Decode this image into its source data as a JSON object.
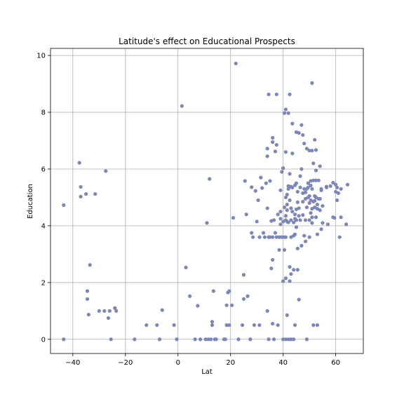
{
  "chart_data": {
    "type": "scatter",
    "title": "Latitude's effect on Educational Prospects",
    "xlabel": "Lat",
    "ylabel": "Education",
    "xlim": [
      -48.5,
      70.5
    ],
    "ylim": [
      -0.5,
      10.25
    ],
    "xticks": [
      -40,
      -20,
      0,
      20,
      40,
      60
    ],
    "yticks": [
      0,
      2,
      4,
      6,
      8,
      10
    ],
    "xtick_labels": [
      "−40",
      "−20",
      "0",
      "20",
      "40",
      "60"
    ],
    "ytick_labels": [
      "0",
      "2",
      "4",
      "6",
      "8",
      "10"
    ],
    "grid": true,
    "marker_color": "#7c87b8",
    "points": [
      [
        -43.5,
        4.73
      ],
      [
        -43.5,
        0
      ],
      [
        -37.5,
        6.22
      ],
      [
        -37,
        5.37
      ],
      [
        -37,
        5.03
      ],
      [
        -35,
        5.12
      ],
      [
        -34.5,
        1.7
      ],
      [
        -34.5,
        1.42
      ],
      [
        -34,
        0.87
      ],
      [
        -33.5,
        2.62
      ],
      [
        -31.5,
        5.12
      ],
      [
        -30,
        1
      ],
      [
        -28,
        1
      ],
      [
        -27.5,
        5.93
      ],
      [
        -26.5,
        0.75
      ],
      [
        -26,
        1
      ],
      [
        -25.5,
        0
      ],
      [
        -24,
        1.1
      ],
      [
        -23.5,
        1
      ],
      [
        -16.5,
        0
      ],
      [
        -12,
        0.5
      ],
      [
        -8,
        0.5
      ],
      [
        -7,
        0
      ],
      [
        -6,
        1.03
      ],
      [
        -1.5,
        0.5
      ],
      [
        -0.5,
        0
      ],
      [
        1.5,
        8.22
      ],
      [
        3,
        2.53
      ],
      [
        4.5,
        1.52
      ],
      [
        6.5,
        0
      ],
      [
        7.5,
        1.18
      ],
      [
        8.5,
        0
      ],
      [
        10.5,
        0
      ],
      [
        11,
        4.1
      ],
      [
        11.5,
        0
      ],
      [
        12,
        5.65
      ],
      [
        12.5,
        0
      ],
      [
        13,
        0.62
      ],
      [
        13,
        0.5
      ],
      [
        13.5,
        1.7
      ],
      [
        14,
        0
      ],
      [
        14.5,
        0
      ],
      [
        17.5,
        0
      ],
      [
        18,
        0
      ],
      [
        18.5,
        0.5
      ],
      [
        18.5,
        1.2
      ],
      [
        19,
        1.65
      ],
      [
        19.5,
        1.7
      ],
      [
        19.5,
        0.5
      ],
      [
        20.5,
        1.2
      ],
      [
        21,
        4.28
      ],
      [
        22,
        9.72
      ],
      [
        23,
        0
      ],
      [
        24.5,
        0.5
      ],
      [
        25,
        1.42
      ],
      [
        25,
        2.27
      ],
      [
        25.5,
        5.58
      ],
      [
        26,
        4.4
      ],
      [
        26.5,
        1.52
      ],
      [
        27.5,
        0
      ],
      [
        28,
        5.36
      ],
      [
        28,
        3.75
      ],
      [
        28.5,
        3.6
      ],
      [
        29,
        0.5
      ],
      [
        29.5,
        5.23
      ],
      [
        30,
        4.15
      ],
      [
        30.5,
        4.9
      ],
      [
        31,
        0.5
      ],
      [
        31,
        3.6
      ],
      [
        31.5,
        5.7
      ],
      [
        32,
        5.33
      ],
      [
        32.5,
        3.75
      ],
      [
        33,
        3.6
      ],
      [
        33.5,
        5.5
      ],
      [
        34,
        4.62
      ],
      [
        34,
        6.72
      ],
      [
        34,
        6.45
      ],
      [
        34,
        1
      ],
      [
        34.5,
        8.63
      ],
      [
        34.5,
        3.6
      ],
      [
        34.5,
        0
      ],
      [
        35,
        5.58
      ],
      [
        35,
        3.6
      ],
      [
        35.5,
        2.5
      ],
      [
        35.5,
        4.17
      ],
      [
        36,
        7.1
      ],
      [
        36,
        6.95
      ],
      [
        36,
        3.6
      ],
      [
        36,
        2.8
      ],
      [
        36,
        0.55
      ],
      [
        36.5,
        4.2
      ],
      [
        36.5,
        0
      ],
      [
        37,
        6.62
      ],
      [
        37,
        3.75
      ],
      [
        37.5,
        8.63
      ],
      [
        37.5,
        6.85
      ],
      [
        37.5,
        3.6
      ],
      [
        38,
        4.4
      ],
      [
        38,
        0.5
      ],
      [
        38.5,
        3.15
      ],
      [
        38.5,
        3.6
      ],
      [
        39,
        4.25
      ],
      [
        39,
        5.25
      ],
      [
        39,
        4.05
      ],
      [
        39,
        4.5
      ],
      [
        39.5,
        5.9
      ],
      [
        39.5,
        3.6
      ],
      [
        39.5,
        3.6
      ],
      [
        40,
        6.03
      ],
      [
        40,
        4.15
      ],
      [
        40,
        2.05
      ],
      [
        40,
        0
      ],
      [
        40.5,
        7.97
      ],
      [
        40.5,
        4.65
      ],
      [
        40.5,
        3.6
      ],
      [
        40.5,
        3.15
      ],
      [
        41,
        8.1
      ],
      [
        41,
        6.6
      ],
      [
        41,
        5
      ],
      [
        41,
        4.35
      ],
      [
        41,
        4.2
      ],
      [
        41,
        3.6
      ],
      [
        41,
        2.15
      ],
      [
        41,
        0
      ],
      [
        41.5,
        5.1
      ],
      [
        41.5,
        4.75
      ],
      [
        41.5,
        4.55
      ],
      [
        41.5,
        4.15
      ],
      [
        41.5,
        0.85
      ],
      [
        42,
        7.97
      ],
      [
        42,
        5.4
      ],
      [
        42,
        5.3
      ],
      [
        42,
        4.12
      ],
      [
        42,
        0
      ],
      [
        42.5,
        8.63
      ],
      [
        42.5,
        5.83
      ],
      [
        42.5,
        4.9
      ],
      [
        42.5,
        2.55
      ],
      [
        42.5,
        2.05
      ],
      [
        43,
        5.38
      ],
      [
        43,
        4.62
      ],
      [
        43,
        4.2
      ],
      [
        43,
        3.6
      ],
      [
        43,
        2.3
      ],
      [
        43,
        0
      ],
      [
        43.5,
        7.6
      ],
      [
        43.5,
        6.55
      ],
      [
        43.5,
        5.35
      ],
      [
        43.5,
        4.5
      ],
      [
        44,
        4.12
      ],
      [
        44,
        3.65
      ],
      [
        44,
        2.45
      ],
      [
        44,
        0
      ],
      [
        44.5,
        5.43
      ],
      [
        44.5,
        4.4
      ],
      [
        44.5,
        4.25
      ],
      [
        44.5,
        3.7
      ],
      [
        44.5,
        0.5
      ],
      [
        45,
        7.3
      ],
      [
        45,
        5.5
      ],
      [
        45,
        4.58
      ],
      [
        45,
        4.2
      ],
      [
        45,
        3.95
      ],
      [
        45.5,
        5.2
      ],
      [
        45.5,
        4.83
      ],
      [
        45.5,
        3.2
      ],
      [
        45.5,
        2.45
      ],
      [
        46,
        7.27
      ],
      [
        46,
        4.62
      ],
      [
        46,
        4.35
      ],
      [
        46,
        1.4
      ],
      [
        46.5,
        5.75
      ],
      [
        46.5,
        5.35
      ],
      [
        46.5,
        4.2
      ],
      [
        47,
        7.55
      ],
      [
        47,
        6
      ],
      [
        47,
        3.3
      ],
      [
        47.5,
        7.2
      ],
      [
        47.5,
        5.15
      ],
      [
        47.5,
        4.85
      ],
      [
        47.5,
        4.38
      ],
      [
        48,
        6.9
      ],
      [
        48,
        5.3
      ],
      [
        48,
        3.65
      ],
      [
        48.5,
        5.18
      ],
      [
        48.5,
        4.95
      ],
      [
        48.5,
        4.2
      ],
      [
        48.5,
        3.45
      ],
      [
        49,
        6.72
      ],
      [
        49,
        5.3
      ],
      [
        49,
        4.65
      ],
      [
        49,
        0
      ],
      [
        49.5,
        5.5
      ],
      [
        49.5,
        5.35
      ],
      [
        49.5,
        5
      ],
      [
        50,
        6.65
      ],
      [
        50,
        5.05
      ],
      [
        50,
        4.8
      ],
      [
        50,
        4.2
      ],
      [
        50,
        3.6
      ],
      [
        50.5,
        5.58
      ],
      [
        50.5,
        5.42
      ],
      [
        50.5,
        4.9
      ],
      [
        50.5,
        4.45
      ],
      [
        51,
        9.03
      ],
      [
        51,
        6.65
      ],
      [
        51,
        5.3
      ],
      [
        51,
        4.6
      ],
      [
        51,
        4.3
      ],
      [
        51,
        4.1
      ],
      [
        51.5,
        6.2
      ],
      [
        51.5,
        5.6
      ],
      [
        51.5,
        4.85
      ],
      [
        51.5,
        0.5
      ],
      [
        52,
        7.03
      ],
      [
        52,
        5.05
      ],
      [
        52,
        4.88
      ],
      [
        52,
        4.65
      ],
      [
        52.5,
        6.67
      ],
      [
        52.5,
        5.95
      ],
      [
        52.5,
        5.6
      ],
      [
        52.5,
        5
      ],
      [
        52.5,
        4.3
      ],
      [
        53,
        4.75
      ],
      [
        53,
        4.6
      ],
      [
        53,
        3.7
      ],
      [
        53,
        0.5
      ],
      [
        53.5,
        5.6
      ],
      [
        53.5,
        4.95
      ],
      [
        54,
        6.1
      ],
      [
        54,
        4.95
      ],
      [
        54,
        4.55
      ],
      [
        54.5,
        5.3
      ],
      [
        54.5,
        5.25
      ],
      [
        54.5,
        3.88
      ],
      [
        55,
        4.7
      ],
      [
        55,
        4.1
      ],
      [
        56.5,
        5.38
      ],
      [
        56.5,
        5.35
      ],
      [
        57,
        4.05
      ],
      [
        58,
        5.4
      ],
      [
        59,
        4.3
      ],
      [
        59,
        5.52
      ],
      [
        59.5,
        4.28
      ],
      [
        60,
        5.45
      ],
      [
        60,
        5.2
      ],
      [
        60.5,
        5.35
      ],
      [
        60.5,
        4.9
      ],
      [
        61,
        5.15
      ],
      [
        61.5,
        3.6
      ],
      [
        62,
        5.3
      ],
      [
        62,
        4.3
      ],
      [
        64,
        4.05
      ],
      [
        64.5,
        5.45
      ]
    ]
  }
}
